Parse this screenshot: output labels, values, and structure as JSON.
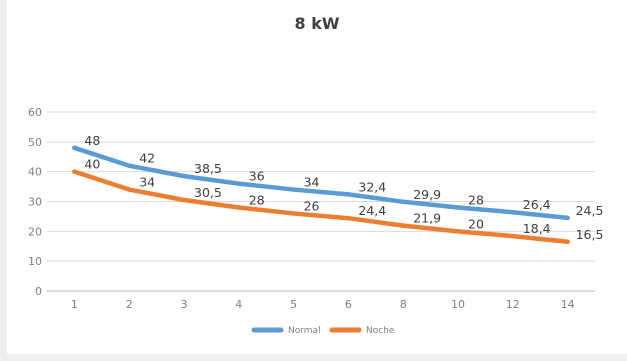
{
  "chart_data": {
    "type": "line",
    "title": "8 kW",
    "categories": [
      "1",
      "2",
      "3",
      "4",
      "5",
      "6",
      "8",
      "10",
      "12",
      "14"
    ],
    "ylim": [
      0,
      60
    ],
    "yticks": [
      0,
      10,
      20,
      30,
      40,
      50,
      60
    ],
    "grid": true,
    "legend_position": "bottom",
    "series": [
      {
        "name": "Normal",
        "color": "#5b9bd5",
        "values": [
          48,
          42,
          38.5,
          36,
          34,
          32.4,
          29.9,
          28,
          26.4,
          24.5
        ],
        "labels": [
          "48",
          "42",
          "38,5",
          "36",
          "34",
          "32,4",
          "29,9",
          "28",
          "26,4",
          "24,5"
        ]
      },
      {
        "name": "Noche",
        "color": "#ed7d31",
        "values": [
          40,
          34,
          30.5,
          28,
          26,
          24.4,
          21.9,
          20,
          18.4,
          16.5
        ],
        "labels": [
          "40",
          "34",
          "30,5",
          "28",
          "26",
          "24,4",
          "21,9",
          "20",
          "18,4",
          "16,5"
        ]
      }
    ]
  }
}
